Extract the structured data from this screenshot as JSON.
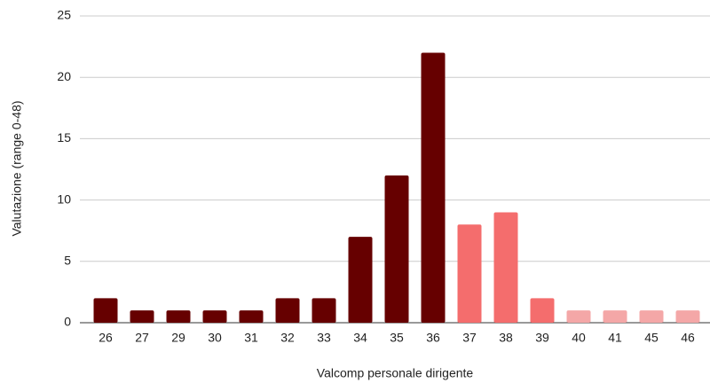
{
  "chart_data": {
    "type": "bar",
    "x_label": "Valcomp personale dirigente",
    "y_label": "Valutazione (range 0-48)",
    "categories": [
      "26",
      "27",
      "29",
      "30",
      "31",
      "32",
      "33",
      "34",
      "35",
      "36",
      "37",
      "38",
      "39",
      "40",
      "41",
      "45",
      "46"
    ],
    "values": [
      2,
      1,
      1,
      1,
      1,
      2,
      2,
      7,
      12,
      22,
      8,
      9,
      2,
      1,
      1,
      1,
      1
    ],
    "colors": [
      "#660000",
      "#660000",
      "#660000",
      "#660000",
      "#660000",
      "#660000",
      "#660000",
      "#660000",
      "#660000",
      "#660000",
      "#f46d6d",
      "#f46d6d",
      "#f46d6d",
      "#f4a7a7",
      "#f4a7a7",
      "#f4a7a7",
      "#f4a7a7"
    ],
    "ylim": [
      0,
      25
    ],
    "yticks": [
      0,
      5,
      10,
      15,
      20,
      25
    ],
    "grid": true
  }
}
